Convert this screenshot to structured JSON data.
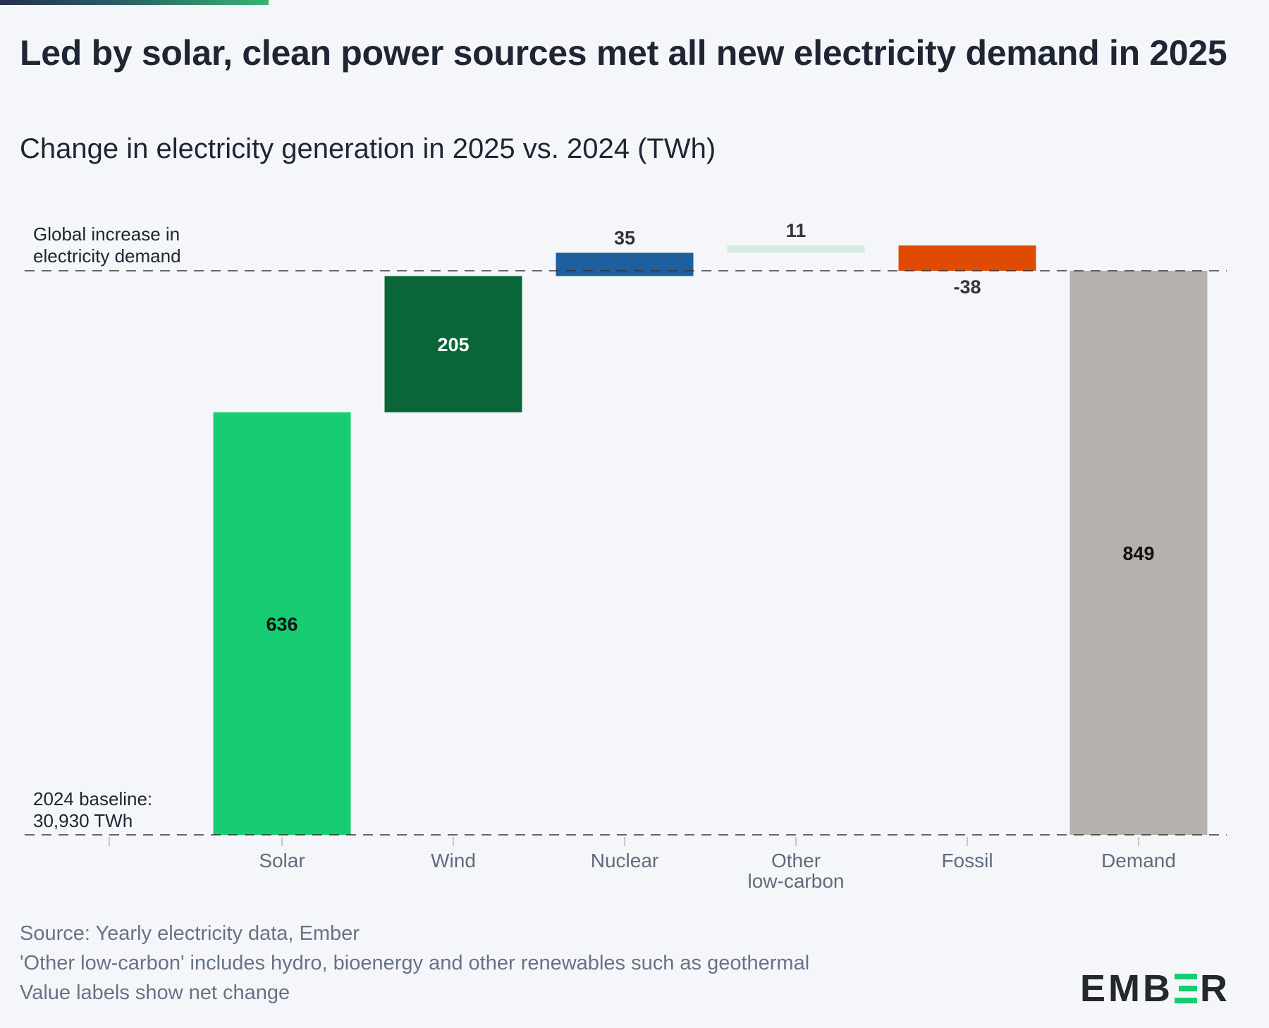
{
  "title": "Led by solar, clean power sources met all new electricity demand in 2025",
  "subtitle": "Change in electricity generation in 2025 vs. 2024 (TWh)",
  "annotations": {
    "demand_line": [
      "Global increase in",
      "electricity demand"
    ],
    "baseline": [
      "2024 baseline:",
      "30,930 TWh"
    ]
  },
  "chart_data": {
    "type": "bar",
    "subtype": "waterfall",
    "categories": [
      "Solar",
      "Wind",
      "Nuclear",
      "Other low-carbon",
      "Fossil",
      "Demand"
    ],
    "category_labels": [
      [
        "Solar"
      ],
      [
        "Wind"
      ],
      [
        "Nuclear"
      ],
      [
        "Other",
        "low-carbon"
      ],
      [
        "Fossil"
      ],
      [
        "Demand"
      ]
    ],
    "values": [
      636,
      205,
      35,
      11,
      -38,
      849
    ],
    "value_labels": [
      "636",
      "205",
      "35",
      "11",
      "-38",
      "849"
    ],
    "colors": [
      "#16cd73",
      "#0a6638",
      "#1e5f9e",
      "#d4ebdf",
      "#e04b04",
      "#b7b1ae"
    ],
    "label_colors": [
      "#111111",
      "#ffffff",
      "#333333",
      "#333333",
      "#333333",
      "#111111"
    ],
    "bar_kinds": [
      "delta",
      "delta",
      "delta",
      "delta",
      "delta",
      "total"
    ],
    "baseline_value": 0,
    "demand_line_value": 849,
    "ylim": [
      0,
      849
    ],
    "grid": false,
    "xlabel": "",
    "ylabel": ""
  },
  "footnotes": [
    "Source: Yearly electricity data, Ember",
    "'Other low-carbon' includes hydro, bioenergy and other renewables such as geothermal",
    "Value labels show net change"
  ],
  "logo": {
    "parts": [
      "EMB",
      "R"
    ],
    "accent_color": "#17cd70"
  }
}
